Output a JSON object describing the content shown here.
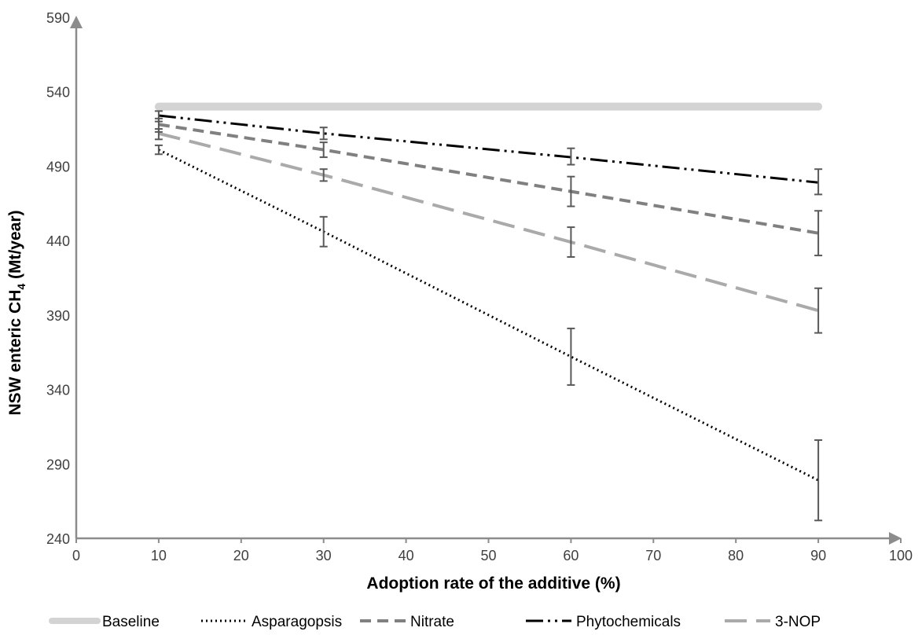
{
  "chart_data": {
    "type": "line",
    "title": "",
    "xlabel": "Adoption rate of the additive (%)",
    "ylabel_main": "NSW enteric CH",
    "ylabel_sub": "4",
    "ylabel_end": " (Mt/year)",
    "xlim": [
      0,
      100
    ],
    "ylim": [
      240,
      590
    ],
    "x_ticks": [
      0,
      10,
      20,
      30,
      40,
      50,
      60,
      70,
      80,
      90,
      100
    ],
    "y_ticks": [
      240,
      290,
      340,
      390,
      440,
      490,
      540,
      590
    ],
    "grid": false,
    "legend_position": "bottom",
    "series": [
      {
        "name": "Baseline",
        "color": "#d3d3d3",
        "style": "solid-thick",
        "x": [
          10,
          90
        ],
        "values": [
          530,
          530
        ]
      },
      {
        "name": "Asparagopsis",
        "color": "#000000",
        "style": "dotted",
        "x": [
          10,
          30,
          60,
          90
        ],
        "values": [
          501,
          446,
          362,
          279
        ],
        "error": [
          [
            498,
            504
          ],
          [
            436,
            456
          ],
          [
            343,
            381
          ],
          [
            252,
            306
          ]
        ]
      },
      {
        "name": "Nitrate",
        "color": "#808080",
        "style": "dashed",
        "x": [
          10,
          30,
          60,
          90
        ],
        "values": [
          518,
          501,
          473,
          445
        ],
        "error": [
          [
            513,
            522
          ],
          [
            496,
            506
          ],
          [
            463,
            483
          ],
          [
            430,
            460
          ]
        ]
      },
      {
        "name": "Phytochemicals",
        "color": "#000000",
        "style": "dash-dot-dot",
        "x": [
          10,
          30,
          60,
          90
        ],
        "values": [
          524,
          512,
          496,
          479
        ],
        "error": [
          [
            520,
            527
          ],
          [
            508,
            516
          ],
          [
            491,
            502
          ],
          [
            471,
            488
          ]
        ]
      },
      {
        "name": "3-NOP",
        "color": "#aaaaaa",
        "style": "long-dash",
        "x": [
          10,
          30,
          60,
          90
        ],
        "values": [
          512,
          484,
          439,
          393
        ],
        "error": [
          [
            508,
            515
          ],
          [
            480,
            488
          ],
          [
            429,
            449
          ],
          [
            378,
            408
          ]
        ]
      }
    ]
  }
}
